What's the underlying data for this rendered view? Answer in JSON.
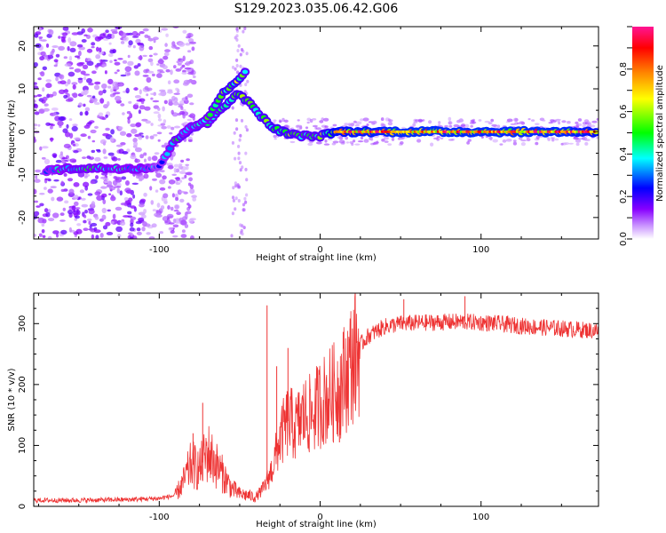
{
  "figure": {
    "title": "S129.2023.035.06.42.G06"
  },
  "chart_data": [
    {
      "type": "heatmap",
      "xlabel": "Height of straight line (km)",
      "ylabel": "Frequency (Hz)",
      "xlim": [
        -178,
        173
      ],
      "ylim": [
        -25,
        24.5
      ],
      "x_ticks": [
        -100,
        0,
        100
      ],
      "y_ticks": [
        -20,
        -10,
        0,
        10,
        20
      ],
      "colorbar": {
        "label": "Normalized spectral amplitude",
        "range": [
          0,
          1
        ],
        "ticks": [
          "0.0",
          "0.2",
          "0.4",
          "0.6",
          "0.8"
        ],
        "colors": [
          "#ffffff",
          "#8800ff",
          "#0000ff",
          "#00ffff",
          "#00ff00",
          "#ffff00",
          "#ff8800",
          "#ff0000",
          "#ff1493"
        ]
      },
      "ridge": [
        {
          "x": -170,
          "f": -9,
          "amp": 0.35
        },
        {
          "x": -150,
          "f": -8.5,
          "amp": 0.45
        },
        {
          "x": -130,
          "f": -8.5,
          "amp": 0.4
        },
        {
          "x": -110,
          "f": -8.5,
          "amp": 0.4
        },
        {
          "x": -100,
          "f": -8,
          "amp": 0.3
        },
        {
          "x": -90,
          "f": -2,
          "amp": 0.45
        },
        {
          "x": -80,
          "f": 1,
          "amp": 0.5
        },
        {
          "x": -70,
          "f": 2,
          "amp": 0.45
        },
        {
          "x": -60,
          "f": 6,
          "amp": 0.5
        },
        {
          "x": -50,
          "f": 9,
          "amp": 0.55
        },
        {
          "x": -40,
          "f": 5,
          "amp": 0.5
        },
        {
          "x": -30,
          "f": 1,
          "amp": 0.55
        },
        {
          "x": -20,
          "f": -0.5,
          "amp": 0.55
        },
        {
          "x": -10,
          "f": -1,
          "amp": 0.5
        },
        {
          "x": 0,
          "f": -1,
          "amp": 0.5
        },
        {
          "x": 10,
          "f": 0,
          "amp": 0.7
        },
        {
          "x": 50,
          "f": 0,
          "amp": 0.75
        },
        {
          "x": 100,
          "f": 0,
          "amp": 0.75
        },
        {
          "x": 150,
          "f": 0,
          "amp": 0.75
        },
        {
          "x": 173,
          "f": 0,
          "amp": 0.7
        }
      ],
      "branch": [
        {
          "x": -85,
          "f": 0,
          "amp": 0.4
        },
        {
          "x": -70,
          "f": 3,
          "amp": 0.45
        },
        {
          "x": -60,
          "f": 9,
          "amp": 0.55
        },
        {
          "x": -50,
          "f": 12,
          "amp": 0.55
        },
        {
          "x": -45,
          "f": 15,
          "amp": 0.45
        }
      ]
    },
    {
      "type": "line",
      "xlabel": "Height of straight line (km)",
      "ylabel": "SNR (10 * v/v)",
      "xlim": [
        -178,
        173
      ],
      "ylim": [
        0,
        350
      ],
      "x_ticks": [
        -100,
        0,
        100
      ],
      "y_ticks": [
        0,
        100,
        200,
        300
      ],
      "series": [
        {
          "color": "#ee3333",
          "points": [
            {
              "x": -178,
              "y": 10
            },
            {
              "x": -150,
              "y": 10
            },
            {
              "x": -120,
              "y": 11
            },
            {
              "x": -100,
              "y": 13
            },
            {
              "x": -90,
              "y": 18
            },
            {
              "x": -85,
              "y": 40
            },
            {
              "x": -80,
              "y": 70
            },
            {
              "x": -75,
              "y": 60
            },
            {
              "x": -70,
              "y": 90
            },
            {
              "x": -65,
              "y": 70
            },
            {
              "x": -60,
              "y": 50
            },
            {
              "x": -55,
              "y": 30
            },
            {
              "x": -50,
              "y": 20
            },
            {
              "x": -45,
              "y": 18
            },
            {
              "x": -40,
              "y": 15
            },
            {
              "x": -35,
              "y": 30
            },
            {
              "x": -30,
              "y": 60
            },
            {
              "x": -25,
              "y": 110
            },
            {
              "x": -20,
              "y": 140
            },
            {
              "x": -15,
              "y": 130
            },
            {
              "x": -10,
              "y": 150
            },
            {
              "x": -5,
              "y": 150
            },
            {
              "x": 0,
              "y": 170
            },
            {
              "x": 5,
              "y": 180
            },
            {
              "x": 10,
              "y": 190
            },
            {
              "x": 15,
              "y": 210
            },
            {
              "x": 20,
              "y": 240
            },
            {
              "x": 25,
              "y": 265
            },
            {
              "x": 30,
              "y": 280
            },
            {
              "x": 40,
              "y": 295
            },
            {
              "x": 50,
              "y": 300
            },
            {
              "x": 70,
              "y": 302
            },
            {
              "x": 90,
              "y": 303
            },
            {
              "x": 110,
              "y": 300
            },
            {
              "x": 130,
              "y": 295
            },
            {
              "x": 150,
              "y": 292
            },
            {
              "x": 173,
              "y": 288
            }
          ],
          "spikes": [
            {
              "x": -33,
              "y": 330
            },
            {
              "x": -27,
              "y": 230
            },
            {
              "x": -20,
              "y": 260
            },
            {
              "x": -73,
              "y": 170
            },
            {
              "x": -79,
              "y": 120
            },
            {
              "x": 90,
              "y": 345
            },
            {
              "x": 52,
              "y": 340
            },
            {
              "x": 12,
              "y": 105
            }
          ]
        }
      ]
    }
  ]
}
